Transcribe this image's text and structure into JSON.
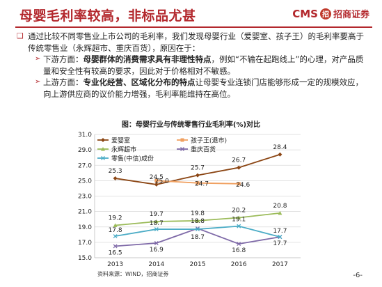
{
  "header": {
    "title": "母婴毛利率较高，非标品尤甚",
    "logo_cms": "CMS",
    "logo_mark": "招",
    "logo_name": "招商证券"
  },
  "body": {
    "para1_prefix": "通过比较不同零售业上市公司的毛利率，我们发现母婴行业（爱婴室、孩子王）的毛利率要高于传统零售业（永辉超市、重庆百货），原因在于：",
    "para2_lead": "下游方面：",
    "para2_bold": "母婴群体的消费需求具有非理性特点",
    "para2_rest": "，例如“不输在起跑线上”的心理，对产品质量和安全性有较高的要求，因此对于价格相对不敏感。",
    "para3_lead": "上游方面：",
    "para3_bold": "专业化经营、区域化分布的特点",
    "para3_rest": "让母婴专业连锁门店能够形成一定的规模效应，向上游供应商的议价能力增强，毛利率能维持在高位。"
  },
  "chart_data": {
    "type": "line",
    "title": "图：母婴行业与传统零售行业毛利率(%)对比",
    "x": [
      "2013",
      "2014",
      "2015",
      "2016",
      "2017"
    ],
    "ylim": [
      15.0,
      31.0
    ],
    "yticks": [
      "15.0",
      "17.0",
      "19.0",
      "21.0",
      "23.0",
      "25.0",
      "27.0",
      "29.0",
      "31.0"
    ],
    "grid": true,
    "legend_position": "top-left",
    "series": [
      {
        "name": "爱婴室",
        "color": "#8b4513",
        "marker": "diamond",
        "values": [
          25.3,
          24.5,
          25.7,
          26.7,
          28.4
        ],
        "labels": [
          "25.3",
          "24.5",
          "25.7",
          "26.7",
          "28.4"
        ]
      },
      {
        "name": "孩子王(退市)",
        "color": "#f0a060",
        "marker": "square",
        "values": [
          null,
          25.0,
          24.7,
          24.6,
          null
        ],
        "labels": [
          "",
          "25.0",
          "24.7",
          "24.6",
          ""
        ]
      },
      {
        "name": "永辉超市",
        "color": "#9bbb59",
        "marker": "triangle",
        "values": [
          19.2,
          19.7,
          19.8,
          20.2,
          20.8
        ],
        "labels": [
          "19.2",
          "19.7",
          "19.8",
          "20.2",
          "20.8"
        ]
      },
      {
        "name": "重庆百货",
        "color": "#7f6aa8",
        "marker": "x",
        "values": [
          16.5,
          16.9,
          18.8,
          16.8,
          17.7
        ],
        "labels": [
          "16.5",
          "16.9",
          "18.8",
          "16.8",
          "17.7"
        ]
      },
      {
        "name": "零售(中信)成份",
        "color": "#4bacc6",
        "marker": "x",
        "values": [
          17.8,
          18.7,
          18.7,
          19.1,
          17.7
        ],
        "labels": [
          "17.8",
          "18.7",
          "18.7",
          "19.1",
          "17.7"
        ]
      }
    ]
  },
  "footer": {
    "source": "资料来源：WIND，招商证券",
    "page": "-6-"
  }
}
